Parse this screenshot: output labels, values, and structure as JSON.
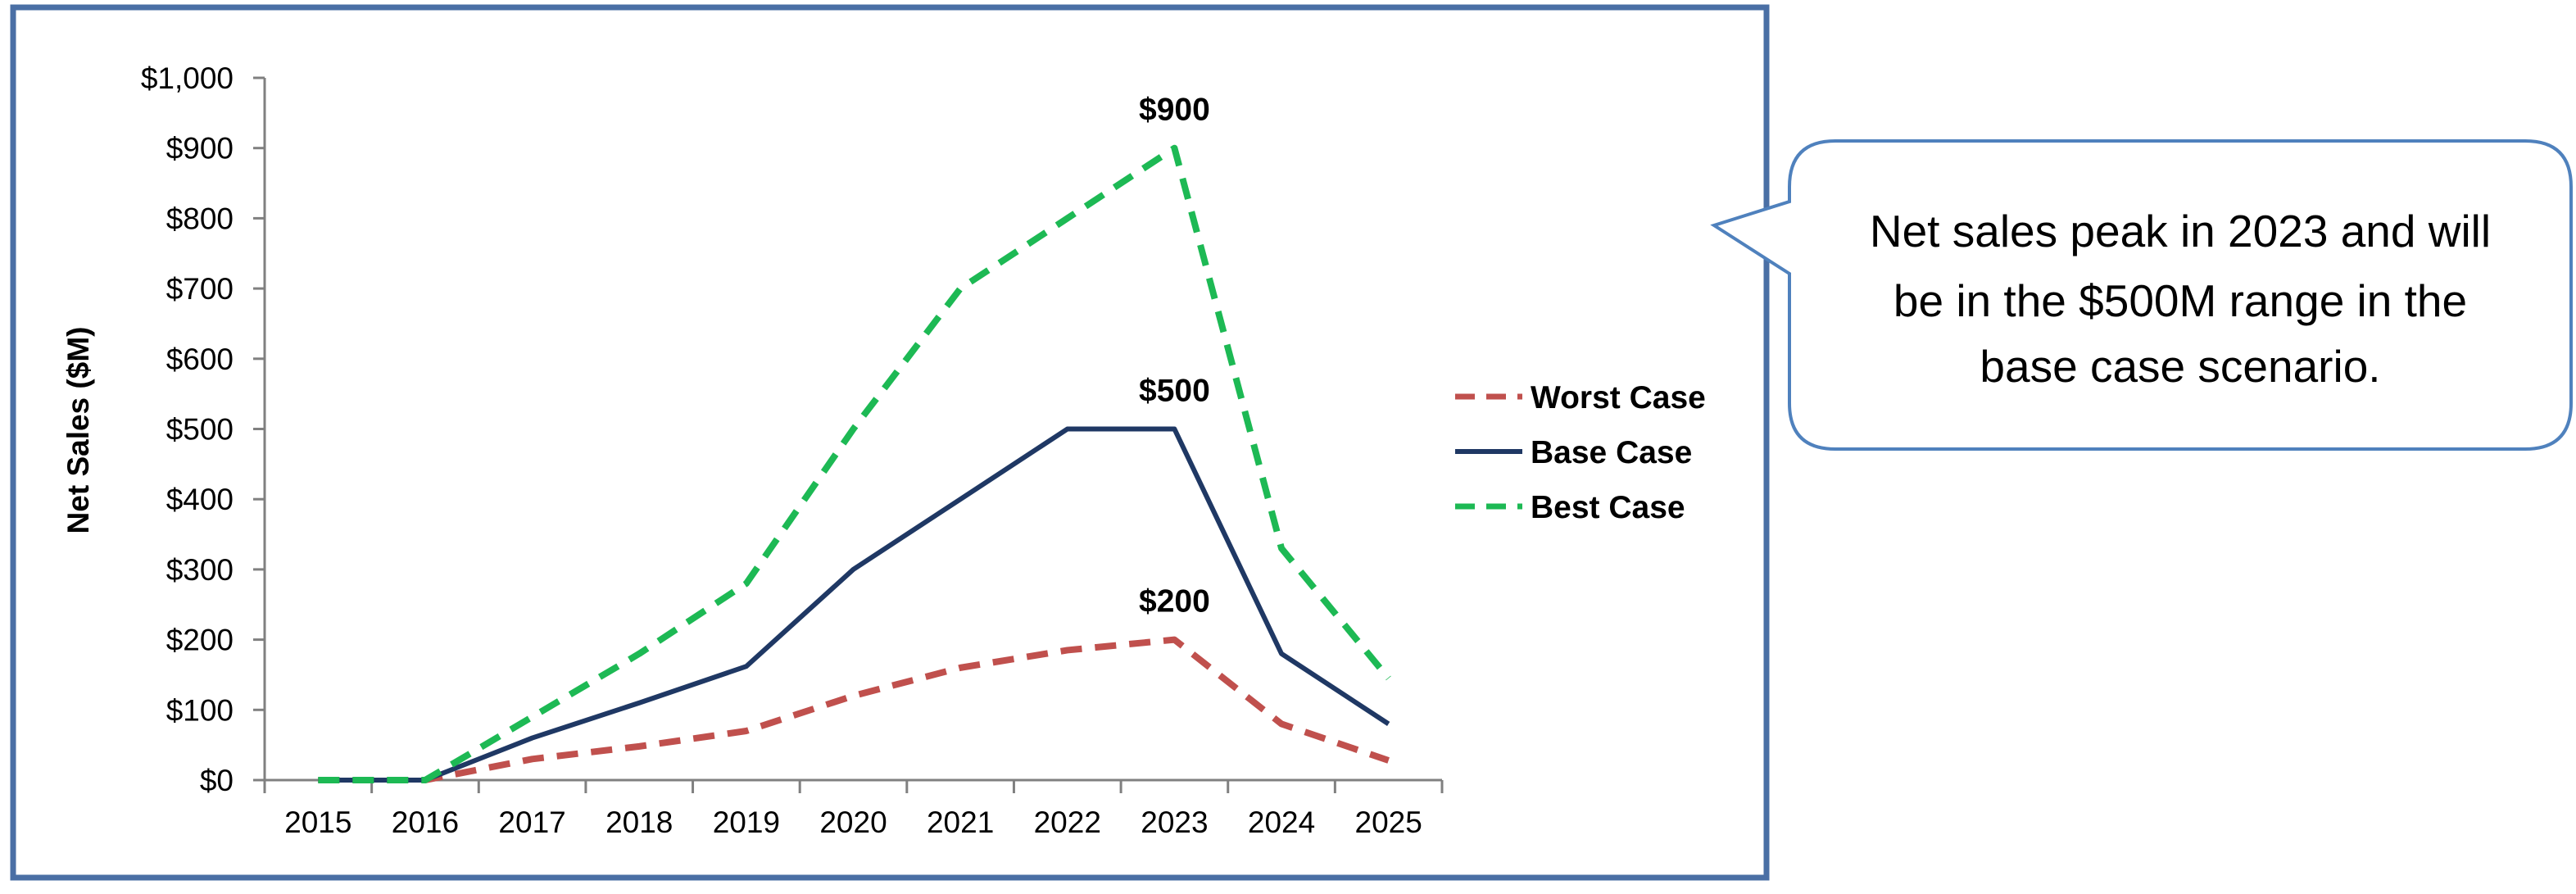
{
  "colors": {
    "worst": "#c0504d",
    "base": "#1f3864",
    "best": "#1db954",
    "frame": "#4a6fa5",
    "callout_border": "#4f81bd",
    "axis": "#808080"
  },
  "chart_data": {
    "type": "line",
    "title": "",
    "xlabel": "",
    "ylabel": "Net Sales ($M)",
    "ylim": [
      0,
      1000
    ],
    "y_ticks": [
      0,
      100,
      200,
      300,
      400,
      500,
      600,
      700,
      800,
      900,
      1000
    ],
    "y_tick_labels": [
      "$0",
      "$100",
      "$200",
      "$300",
      "$400",
      "$500",
      "$600",
      "$700",
      "$800",
      "$900",
      "$1,000"
    ],
    "categories": [
      "2015",
      "2016",
      "2017",
      "2018",
      "2019",
      "2020",
      "2021",
      "2022",
      "2023",
      "2024",
      "2025"
    ],
    "grid": false,
    "legend_position": "right",
    "series": [
      {
        "name": "Worst Case",
        "style": "dashed",
        "color_key": "worst",
        "values": [
          0,
          0,
          30,
          48,
          70,
          120,
          160,
          185,
          200,
          80,
          28
        ]
      },
      {
        "name": "Base Case",
        "style": "solid",
        "color_key": "base",
        "values": [
          0,
          0,
          60,
          110,
          162,
          300,
          400,
          500,
          500,
          180,
          80
        ]
      },
      {
        "name": "Best Case",
        "style": "dashed",
        "color_key": "best",
        "values": [
          0,
          0,
          90,
          180,
          280,
          500,
          700,
          800,
          900,
          330,
          145
        ]
      }
    ],
    "annotations": [
      {
        "text": "$900",
        "category": "2023",
        "value": 900
      },
      {
        "text": "$500",
        "category": "2023",
        "value": 500
      },
      {
        "text": "$200",
        "category": "2023",
        "value": 200
      }
    ]
  },
  "callout": {
    "lines": [
      "Net sales peak in 2023 and will",
      "be in the $500M range in the",
      "base case scenario."
    ]
  }
}
